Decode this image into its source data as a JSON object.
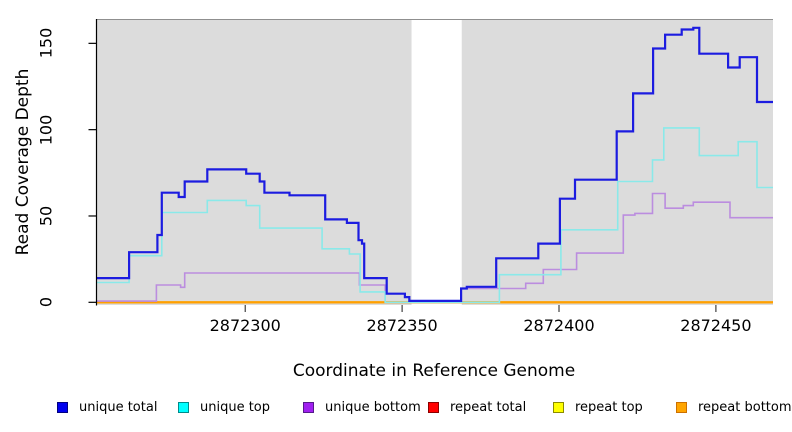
{
  "figure": {
    "background": "#ffffff",
    "plot_background": "#dcdcdc",
    "axis_color": "#000000",
    "tick_color": "#404040",
    "frame_color": "#8f8f8f",
    "mask_color": "#ffffff"
  },
  "chart_data": {
    "type": "line",
    "step": true,
    "title": "",
    "xlabel": "Coordinate in Reference Genome",
    "ylabel": "Read Coverage Depth",
    "xlim": [
      2872252.6,
      2872468.2
    ],
    "ylim": [
      -1.56,
      164.1
    ],
    "grid": false,
    "legend_position": "bottom",
    "x_ticks": [
      {
        "value": 2872300,
        "label": "2872300"
      },
      {
        "value": 2872350,
        "label": "2872350"
      },
      {
        "value": 2872400,
        "label": "2872400"
      },
      {
        "value": 2872450,
        "label": "2872450"
      }
    ],
    "y_ticks": [
      {
        "value": 0,
        "label": "0"
      },
      {
        "value": 50,
        "label": "50"
      },
      {
        "value": 100,
        "label": "100"
      },
      {
        "value": 150,
        "label": "150"
      }
    ],
    "no_data_mask": {
      "from": 2872353,
      "to": 2872369
    },
    "draw_order": [
      3,
      4,
      5,
      2,
      1,
      0
    ],
    "series": [
      {
        "name": "unique total",
        "line_color": "#1c1ce0",
        "line_width": 2.2,
        "legend_fill": "#0000ee",
        "legend_border": "#000080",
        "points": [
          [
            2872252.6,
            14
          ],
          [
            2872263,
            29
          ],
          [
            2872272,
            39
          ],
          [
            2872273.4,
            63.5
          ],
          [
            2872278.8,
            61
          ],
          [
            2872280.7,
            70
          ],
          [
            2872287.9,
            77
          ],
          [
            2872300.3,
            74.5
          ],
          [
            2872304.6,
            70
          ],
          [
            2872306.1,
            63.5
          ],
          [
            2872314.1,
            62
          ],
          [
            2872325.5,
            48
          ],
          [
            2872332.4,
            46
          ],
          [
            2872336.1,
            36
          ],
          [
            2872337.2,
            34
          ],
          [
            2872337.9,
            14
          ],
          [
            2872345.1,
            5
          ],
          [
            2872350.9,
            3
          ],
          [
            2872352.3,
            0.8
          ],
          [
            2872368.8,
            8
          ],
          [
            2872370.6,
            9
          ],
          [
            2872380,
            25.5
          ],
          [
            2872393.4,
            34
          ],
          [
            2872400.3,
            60
          ],
          [
            2872405.1,
            71
          ],
          [
            2872418.4,
            99
          ],
          [
            2872423.6,
            121
          ],
          [
            2872430,
            147
          ],
          [
            2872433.8,
            155
          ],
          [
            2872439.1,
            158
          ],
          [
            2872442.8,
            159
          ],
          [
            2872444.7,
            144
          ],
          [
            2872453.9,
            136
          ],
          [
            2872457.6,
            142
          ],
          [
            2872463.1,
            116
          ]
        ]
      },
      {
        "name": "unique top",
        "line_color": "#8ae9e9",
        "line_width": 1.6,
        "legend_fill": "#00ffff",
        "legend_border": "#008b8b",
        "points": [
          [
            2872252.6,
            11.5
          ],
          [
            2872263,
            27
          ],
          [
            2872273.4,
            52
          ],
          [
            2872287.9,
            59
          ],
          [
            2872300.3,
            56
          ],
          [
            2872304.6,
            43
          ],
          [
            2872324.5,
            31
          ],
          [
            2872333.2,
            28
          ],
          [
            2872336.6,
            6
          ],
          [
            2872344.6,
            0
          ],
          [
            2872381,
            16
          ],
          [
            2872400.6,
            42
          ],
          [
            2872418.7,
            70
          ],
          [
            2872429.8,
            82.5
          ],
          [
            2872433.4,
            101
          ],
          [
            2872444.7,
            85
          ],
          [
            2872457.1,
            93
          ],
          [
            2872463.1,
            66.5
          ]
        ]
      },
      {
        "name": "unique bottom",
        "line_color": "#bb8ddf",
        "line_width": 1.6,
        "legend_fill": "#a020f0",
        "legend_border": "#551a8b",
        "points": [
          [
            2872252.6,
            0.7
          ],
          [
            2872271.7,
            10
          ],
          [
            2872279.4,
            8.7
          ],
          [
            2872280.7,
            17
          ],
          [
            2872336.4,
            10
          ],
          [
            2872344.6,
            0
          ],
          [
            2872368.8,
            8
          ],
          [
            2872389.4,
            11
          ],
          [
            2872395,
            19
          ],
          [
            2872405.6,
            28.5
          ],
          [
            2872420.5,
            50.5
          ],
          [
            2872424.2,
            51.5
          ],
          [
            2872429.8,
            63
          ],
          [
            2872433.8,
            54.5
          ],
          [
            2872439.6,
            56
          ],
          [
            2872442.8,
            58
          ],
          [
            2872454.5,
            49
          ]
        ]
      },
      {
        "name": "repeat total",
        "line_color": "#ff0000",
        "line_width": 1.5,
        "legend_fill": "#ff0000",
        "legend_border": "#8b0000",
        "points": [
          [
            2872252.6,
            0
          ]
        ]
      },
      {
        "name": "repeat top",
        "line_color": "#ffff00",
        "line_width": 1.5,
        "legend_fill": "#ffff00",
        "legend_border": "#8b8b00",
        "points": [
          [
            2872252.6,
            0
          ]
        ]
      },
      {
        "name": "repeat bottom",
        "line_color": "#ffa000",
        "line_width": 2.4,
        "legend_fill": "#ffa500",
        "legend_border": "#cc7000",
        "points": [
          [
            2872252.6,
            0
          ]
        ]
      }
    ]
  }
}
